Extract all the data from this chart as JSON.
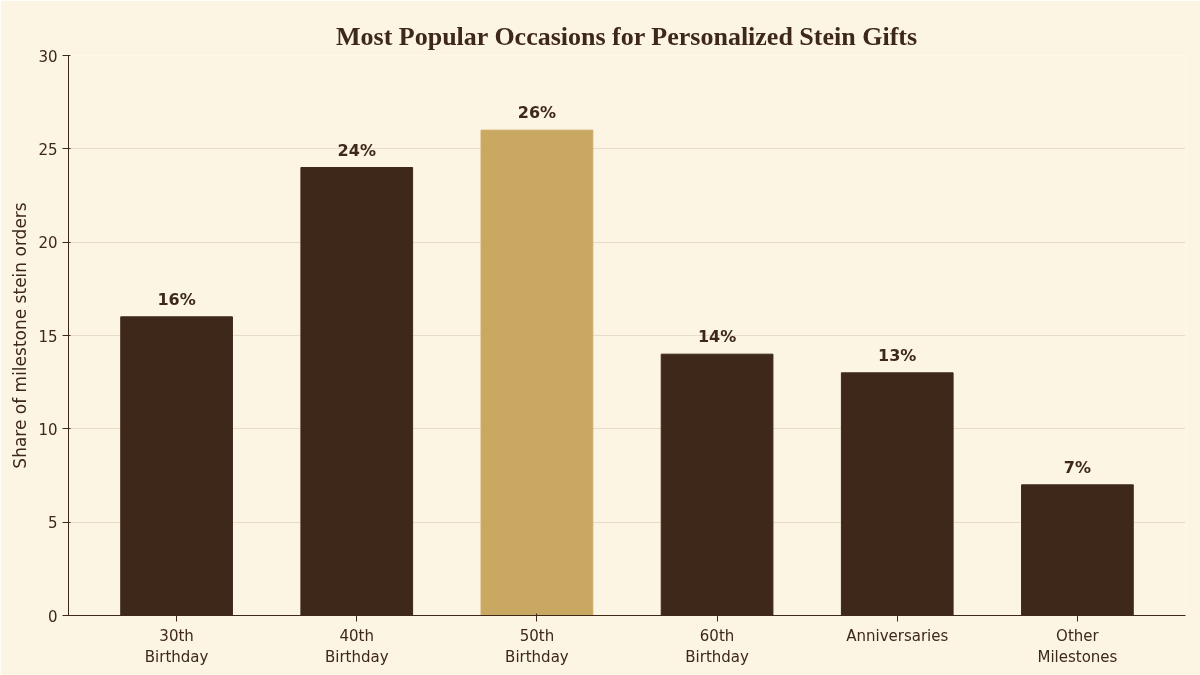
{
  "chart_data": {
    "type": "bar",
    "title": "Most Popular Occasions for Personalized Stein Gifts",
    "ylabel": "Share of milestone stein orders",
    "categories": [
      "30th\nBirthday",
      "40th\nBirthday",
      "50th\nBirthday",
      "60th\nBirthday",
      "Anniversaries",
      "Other\nMilestones"
    ],
    "values": [
      16,
      24,
      26,
      14,
      13,
      7
    ],
    "colors": [
      "#3d2819",
      "#3d2819",
      "#c9a862",
      "#3d2819",
      "#3d2819",
      "#3d2819"
    ],
    "value_labels": [
      "16%",
      "24%",
      "26%",
      "14%",
      "13%",
      "7%"
    ],
    "ylim": [
      0,
      30
    ],
    "yticks": [
      0,
      5,
      10,
      15,
      20,
      25,
      30
    ],
    "grid": "y"
  }
}
